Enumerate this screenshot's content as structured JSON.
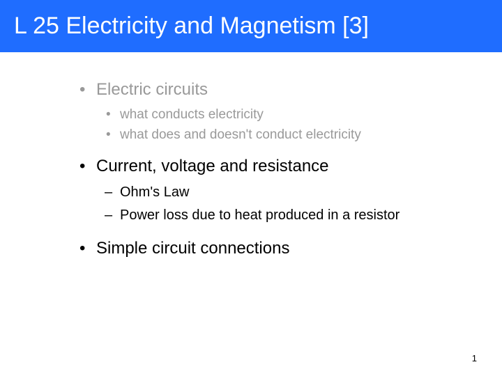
{
  "title": "L 25 Electricity and Magnetism [3]",
  "title_bar_color": "#1f6dff",
  "title_text_color": "#ffffff",
  "dimmed_color": "#999999",
  "normal_color": "#000000",
  "background_color": "#ffffff",
  "bullets": {
    "item1": {
      "text": "Electric circuits",
      "sub1": "what conducts electricity",
      "sub2": "what does and doesn't conduct electricity"
    },
    "item2": {
      "text": "Current, voltage and resistance",
      "sub1": "Ohm's Law",
      "sub2": "Power loss due to heat produced in a resistor"
    },
    "item3": {
      "text": "Simple circuit connections"
    }
  },
  "page_number": "1",
  "fonts": {
    "title_size": 34,
    "level1_size": 24,
    "level2_size": 20
  }
}
